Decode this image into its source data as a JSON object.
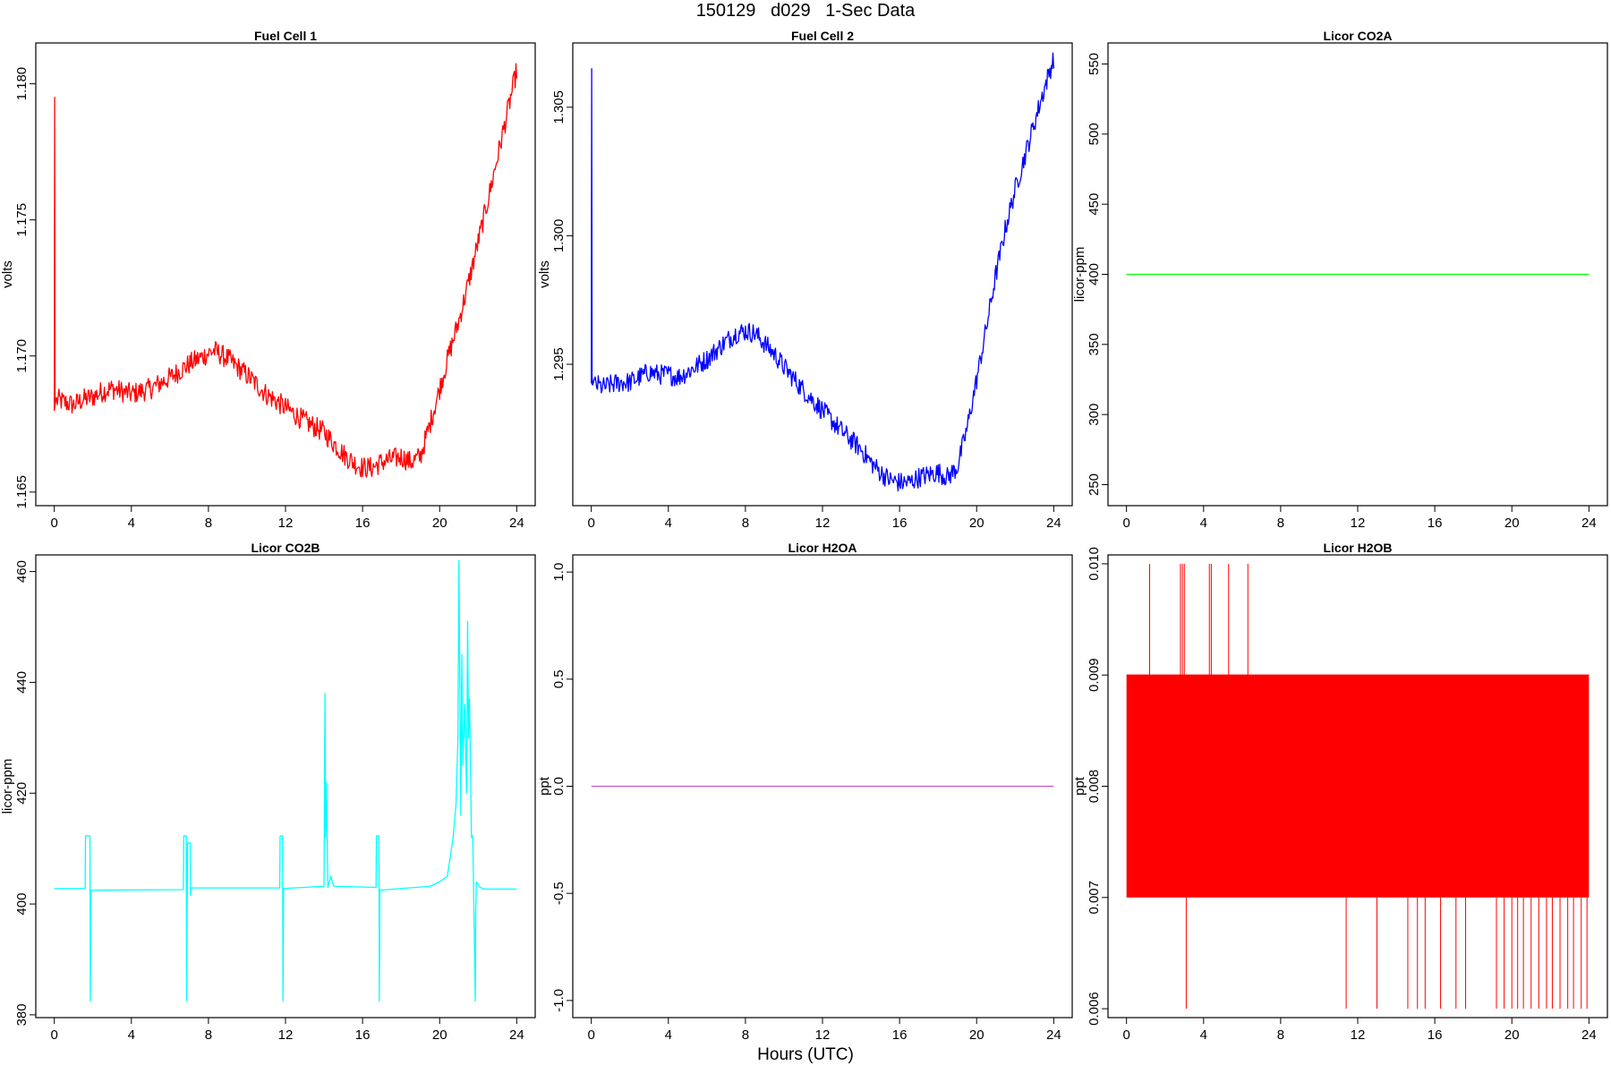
{
  "figure": {
    "title": "150129   d029   1-Sec Data",
    "xlabel": "Hours (UTC)"
  },
  "chart_data": [
    {
      "type": "line",
      "title": "Fuel Cell 1",
      "ylabel": "volts",
      "color": "#ff0000",
      "xlim": [
        -0.96,
        24.96
      ],
      "ylim": [
        1.1645,
        1.1815
      ],
      "xticks": [
        0,
        4,
        8,
        12,
        16,
        20,
        24
      ],
      "yticks": [
        1.165,
        1.17,
        1.175,
        1.18
      ],
      "ytick_labels": [
        "1.165",
        "1.170",
        "1.175",
        "1.180"
      ],
      "series": [
        {
          "noise": 0.0004,
          "x": [
            0,
            0.02,
            0.04,
            0.06,
            0.2,
            0.5,
            1,
            1.5,
            2,
            2.5,
            3,
            3.5,
            4,
            4.5,
            5,
            6,
            7,
            7.5,
            8,
            8.3,
            9,
            9.5,
            10,
            11,
            12,
            13,
            14,
            14.5,
            15,
            15.5,
            16,
            16.5,
            17,
            18,
            18.5,
            19,
            19.5,
            20,
            20.5,
            21,
            21.5,
            22,
            22.5,
            23,
            23.5,
            24
          ],
          "y": [
            1.168,
            1.1795,
            1.1685,
            1.1683,
            1.1684,
            1.1683,
            1.1682,
            1.1684,
            1.1685,
            1.1687,
            1.1688,
            1.1687,
            1.1686,
            1.1687,
            1.1688,
            1.1692,
            1.1697,
            1.1699,
            1.1701,
            1.1702,
            1.1699,
            1.1696,
            1.1693,
            1.1686,
            1.1681,
            1.1676,
            1.1672,
            1.1668,
            1.1664,
            1.1661,
            1.1659,
            1.1659,
            1.1661,
            1.1663,
            1.1661,
            1.1663,
            1.1675,
            1.1688,
            1.1701,
            1.1713,
            1.1727,
            1.1742,
            1.1757,
            1.1773,
            1.1789,
            1.1805
          ]
        }
      ]
    },
    {
      "type": "line",
      "title": "Fuel Cell 2",
      "ylabel": "volts",
      "color": "#0000ff",
      "xlim": [
        -0.96,
        24.96
      ],
      "ylim": [
        1.2895,
        1.3075
      ],
      "xticks": [
        0,
        4,
        8,
        12,
        16,
        20,
        24
      ],
      "yticks": [
        1.295,
        1.3,
        1.305
      ],
      "ytick_labels": [
        "1.295",
        "1.300",
        "1.305"
      ],
      "series": [
        {
          "noise": 0.0004,
          "x": [
            0,
            0.02,
            0.04,
            0.06,
            0.3,
            0.6,
            1,
            1.5,
            2,
            2.5,
            3,
            3.5,
            4,
            4.5,
            5,
            6,
            7,
            7.5,
            8,
            8.5,
            9,
            9.5,
            10,
            11,
            12,
            13,
            14,
            14.5,
            15,
            15.5,
            16,
            16.5,
            17,
            18,
            18.5,
            19,
            19.5,
            20,
            20.5,
            21,
            21.5,
            22,
            22.5,
            23,
            23.5,
            24
          ],
          "y": [
            1.2943,
            1.3065,
            1.2945,
            1.2942,
            1.2942,
            1.2941,
            1.2942,
            1.2943,
            1.2943,
            1.2945,
            1.2947,
            1.2946,
            1.2946,
            1.2945,
            1.2947,
            1.2952,
            1.2959,
            1.2962,
            1.2963,
            1.2962,
            1.2958,
            1.2954,
            1.2949,
            1.294,
            1.2932,
            1.2924,
            1.2917,
            1.2912,
            1.2908,
            1.2905,
            1.2904,
            1.2904,
            1.2906,
            1.2908,
            1.2906,
            1.291,
            1.2925,
            1.2944,
            1.2964,
            1.2985,
            1.3003,
            1.3018,
            1.3031,
            1.3044,
            1.3057,
            1.3069
          ]
        }
      ]
    },
    {
      "type": "line",
      "title": "Licor CO2A",
      "ylabel": "licor-ppm",
      "color": "#00ff00",
      "xlim": [
        -0.96,
        24.96
      ],
      "ylim": [
        235,
        565
      ],
      "xticks": [
        0,
        4,
        8,
        12,
        16,
        20,
        24
      ],
      "yticks": [
        250,
        300,
        350,
        400,
        450,
        500,
        550
      ],
      "ytick_labels": [
        "250",
        "300",
        "350",
        "400",
        "450",
        "500",
        "550"
      ],
      "series": [
        {
          "x": [
            0,
            24
          ],
          "y": [
            400,
            400
          ]
        }
      ]
    },
    {
      "type": "line",
      "title": "Licor CO2B",
      "ylabel": "licor-ppm",
      "color": "#00ffff",
      "xlim": [
        -0.96,
        24.96
      ],
      "ylim": [
        379.5,
        463
      ],
      "xticks": [
        0,
        4,
        8,
        12,
        16,
        20,
        24
      ],
      "yticks": [
        380,
        400,
        420,
        440,
        460
      ],
      "ytick_labels": [
        "380",
        "400",
        "420",
        "440",
        "460"
      ],
      "series": [
        {
          "x": [
            0,
            1.6,
            1.62,
            1.85,
            1.87,
            1.9,
            6.7,
            6.72,
            6.85,
            6.87,
            6.9,
            6.92,
            7.05,
            7.07,
            7.1,
            11.7,
            11.72,
            11.85,
            11.87,
            11.9,
            14.0,
            14.05,
            14.08,
            14.12,
            14.2,
            14.35,
            14.5,
            16.7,
            16.72,
            16.85,
            16.87,
            16.9,
            19.5,
            20.0,
            20.4,
            20.7,
            20.85,
            20.95,
            21.0,
            21.1,
            21.15,
            21.2,
            21.3,
            21.4,
            21.45,
            21.5,
            21.55,
            21.6,
            21.65,
            21.7,
            21.72,
            21.85,
            21.87,
            21.9,
            22.1,
            22.3,
            24
          ],
          "y": [
            402.8,
            402.8,
            412.3,
            412.3,
            382.5,
            402.5,
            402.6,
            412.3,
            412.3,
            382.5,
            401.5,
            411.0,
            411.0,
            401.5,
            402.9,
            402.9,
            412.3,
            412.3,
            382.5,
            402.8,
            403.2,
            438.0,
            412.0,
            422.0,
            403.0,
            405.0,
            403.2,
            403.0,
            412.3,
            412.3,
            382.5,
            402.5,
            403.2,
            404.0,
            405.0,
            412.0,
            418.0,
            430.0,
            462.0,
            416.0,
            445.0,
            425.0,
            436.0,
            420.0,
            451.0,
            430.0,
            437.0,
            425.0,
            412.0,
            412.3,
            412.3,
            382.5,
            398.0,
            404.0,
            403.0,
            402.7,
            402.7
          ]
        }
      ]
    },
    {
      "type": "line",
      "title": "Licor H2OA",
      "ylabel": "ppt",
      "color": "#cc55cc",
      "xlim": [
        -0.96,
        24.96
      ],
      "ylim": [
        -1.08,
        1.08
      ],
      "xticks": [
        0,
        4,
        8,
        12,
        16,
        20,
        24
      ],
      "yticks": [
        -1.0,
        -0.5,
        0.0,
        0.5,
        1.0
      ],
      "ytick_labels": [
        "-1.0",
        "-0.5",
        "0.0",
        "0.5",
        "1.0"
      ],
      "series": [
        {
          "x": [
            0,
            24
          ],
          "y": [
            0.0,
            0.0
          ]
        }
      ]
    },
    {
      "type": "line",
      "title": "Licor H2OB",
      "ylabel": "ppt",
      "color": "#ff0000",
      "xlim": [
        -0.96,
        24.96
      ],
      "ylim": [
        0.00592,
        0.01008
      ],
      "xticks": [
        0,
        4,
        8,
        12,
        16,
        20,
        24
      ],
      "yticks": [
        0.006,
        0.007,
        0.008,
        0.009,
        0.01
      ],
      "ytick_labels": [
        "0.006",
        "0.007",
        "0.008",
        "0.009",
        "0.010"
      ],
      "series": [
        {
          "x": [
            0,
            24
          ],
          "y": [
            0.009,
            0.009
          ]
        }
      ],
      "band": {
        "x": [
          0,
          24
        ],
        "y": [
          0.007,
          0.009
        ]
      },
      "spikes": [
        {
          "x": 1.2,
          "y": 0.01
        },
        {
          "x": 2.8,
          "y": 0.01
        },
        {
          "x": 2.9,
          "y": 0.01
        },
        {
          "x": 3.0,
          "y": 0.01
        },
        {
          "x": 4.3,
          "y": 0.01
        },
        {
          "x": 4.4,
          "y": 0.01
        },
        {
          "x": 5.3,
          "y": 0.01
        },
        {
          "x": 6.3,
          "y": 0.01
        },
        {
          "x": 3.1,
          "y": 0.006
        },
        {
          "x": 11.4,
          "y": 0.006
        },
        {
          "x": 13.0,
          "y": 0.006
        },
        {
          "x": 14.6,
          "y": 0.006
        },
        {
          "x": 15.1,
          "y": 0.006
        },
        {
          "x": 15.5,
          "y": 0.006
        },
        {
          "x": 16.3,
          "y": 0.006
        },
        {
          "x": 17.1,
          "y": 0.006
        },
        {
          "x": 17.6,
          "y": 0.006
        },
        {
          "x": 19.2,
          "y": 0.006
        },
        {
          "x": 19.6,
          "y": 0.006
        },
        {
          "x": 20.0,
          "y": 0.006
        },
        {
          "x": 20.3,
          "y": 0.006
        },
        {
          "x": 20.6,
          "y": 0.006
        },
        {
          "x": 21.0,
          "y": 0.006
        },
        {
          "x": 21.4,
          "y": 0.006
        },
        {
          "x": 21.8,
          "y": 0.006
        },
        {
          "x": 22.1,
          "y": 0.006
        },
        {
          "x": 22.5,
          "y": 0.006
        },
        {
          "x": 22.9,
          "y": 0.006
        },
        {
          "x": 23.2,
          "y": 0.006
        },
        {
          "x": 23.6,
          "y": 0.006
        },
        {
          "x": 23.9,
          "y": 0.006
        }
      ]
    }
  ]
}
